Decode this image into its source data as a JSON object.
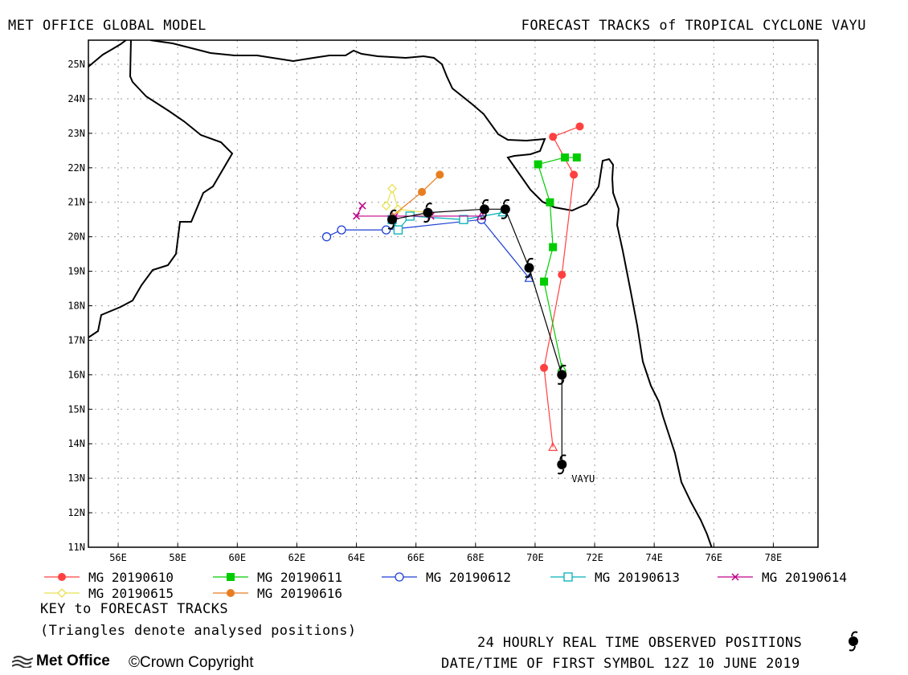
{
  "header": {
    "left": "MET OFFICE GLOBAL MODEL",
    "right": "FORECAST TRACKS of TROPICAL CYCLONE VAYU"
  },
  "map": {
    "lon_range": [
      55,
      79.5
    ],
    "lat_range": [
      11,
      25.7
    ],
    "lat_ticks": [
      "11N",
      "12N",
      "13N",
      "14N",
      "15N",
      "16N",
      "17N",
      "18N",
      "19N",
      "20N",
      "21N",
      "22N",
      "23N",
      "24N",
      "25N"
    ],
    "lon_ticks": [
      "56E",
      "58E",
      "60E",
      "62E",
      "64E",
      "66E",
      "68E",
      "70E",
      "72E",
      "74E",
      "76E",
      "78E"
    ],
    "storm_label": "VAYU",
    "grid": true
  },
  "legend": {
    "items": [
      {
        "label": "MG 20190610",
        "color": "#ff4040",
        "marker": "filled-circle"
      },
      {
        "label": "MG 20190611",
        "color": "#00cc00",
        "marker": "filled-square"
      },
      {
        "label": "MG 20190612",
        "color": "#1f3fd6",
        "marker": "open-circle"
      },
      {
        "label": "MG 20190613",
        "color": "#00b0b8",
        "marker": "open-square"
      },
      {
        "label": "MG 20190614",
        "color": "#c0008a",
        "marker": "cross"
      },
      {
        "label": "MG 20190615",
        "color": "#e8e050",
        "marker": "open-diamond"
      },
      {
        "label": "MG 20190616",
        "color": "#e87d20",
        "marker": "filled-circle"
      }
    ],
    "key_title": "KEY to FORECAST TRACKS",
    "key_note": "(Triangles denote analysed positions)"
  },
  "footer": {
    "observed": "24 HOURLY REAL TIME OBSERVED POSITIONS",
    "datetime": "DATE/TIME OF FIRST SYMBOL 12Z 10 JUNE 2019",
    "logo": "Met Office",
    "copyright": "©Crown Copyright"
  },
  "chart_data": {
    "type": "scatter",
    "title": "FORECAST TRACKS of TROPICAL CYCLONE VAYU",
    "xlabel": "",
    "ylabel": "",
    "xlim": [
      55,
      79.5
    ],
    "ylim": [
      11,
      25.7
    ],
    "observed_track": {
      "name": "VAYU",
      "positions": [
        [
          70.9,
          13.4
        ],
        [
          70.9,
          16.0
        ],
        [
          69.8,
          19.1
        ],
        [
          69.0,
          20.8
        ],
        [
          68.3,
          20.8
        ],
        [
          66.4,
          20.7
        ],
        [
          65.2,
          20.5
        ]
      ]
    },
    "series": [
      {
        "name": "MG 20190610",
        "color": "#ff4040",
        "points": [
          [
            70.6,
            13.9
          ],
          [
            70.3,
            16.2
          ],
          [
            70.9,
            18.9
          ],
          [
            71.3,
            21.8
          ],
          [
            70.6,
            22.9
          ],
          [
            71.5,
            23.2
          ]
        ]
      },
      {
        "name": "MG 20190611",
        "color": "#00cc00",
        "points": [
          [
            70.9,
            16.2
          ],
          [
            70.3,
            18.7
          ],
          [
            70.6,
            19.7
          ],
          [
            70.5,
            21.0
          ],
          [
            70.1,
            22.1
          ],
          [
            71.0,
            22.3
          ],
          [
            71.4,
            22.3
          ]
        ]
      },
      {
        "name": "MG 20190612",
        "color": "#1f3fd6",
        "points": [
          [
            69.8,
            18.8
          ],
          [
            68.2,
            20.5
          ],
          [
            65.0,
            20.2
          ],
          [
            63.5,
            20.2
          ],
          [
            63.0,
            20.0
          ]
        ]
      },
      {
        "name": "MG 20190613",
        "color": "#00b0b8",
        "points": [
          [
            68.9,
            20.7
          ],
          [
            67.6,
            20.5
          ],
          [
            65.8,
            20.6
          ],
          [
            65.4,
            20.2
          ],
          [
            65.2,
            20.5
          ]
        ]
      },
      {
        "name": "MG 20190614",
        "color": "#c0008a",
        "points": [
          [
            68.2,
            20.6
          ],
          [
            66.5,
            20.6
          ],
          [
            65.3,
            20.6
          ],
          [
            64.0,
            20.6
          ],
          [
            64.2,
            20.9
          ]
        ]
      },
      {
        "name": "MG 20190615",
        "color": "#e8e050",
        "points": [
          [
            66.4,
            20.7
          ],
          [
            65.4,
            20.8
          ],
          [
            65.2,
            21.4
          ],
          [
            65.0,
            20.9
          ]
        ]
      },
      {
        "name": "MG 20190616",
        "color": "#e87d20",
        "points": [
          [
            65.2,
            20.6
          ],
          [
            66.2,
            21.3
          ],
          [
            66.8,
            21.8
          ]
        ]
      }
    ]
  }
}
